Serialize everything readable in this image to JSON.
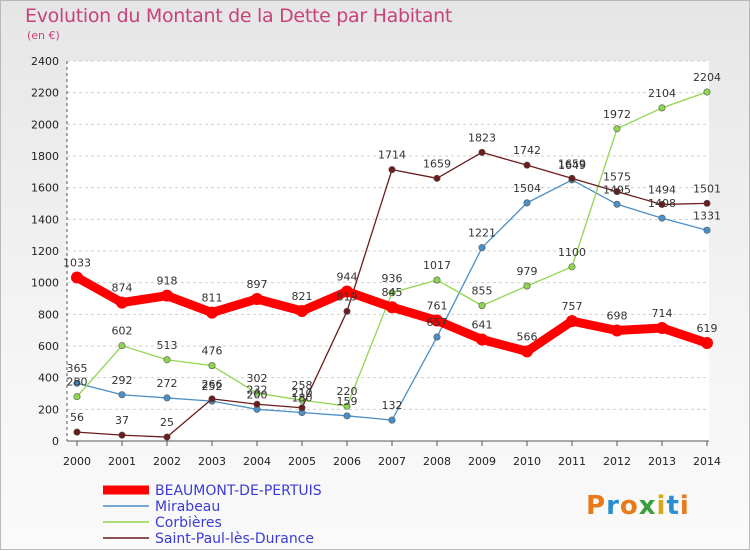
{
  "title": "Evolution du Montant de la Dette par Habitant",
  "unit": "(en €)",
  "logo": "Proxiti",
  "chart_data": {
    "type": "line",
    "title": "Evolution du Montant de la Dette par Habitant",
    "ylabel": "(en €)",
    "xlabel": "",
    "x": [
      "2000",
      "2001",
      "2002",
      "2003",
      "2004",
      "2005",
      "2006",
      "2007",
      "2008",
      "2009",
      "2010",
      "2011",
      "2012",
      "2013",
      "2014"
    ],
    "ylim": [
      0,
      2400
    ],
    "yticks": [
      "0",
      "200",
      "400",
      "600",
      "800",
      "1000",
      "1200",
      "1400",
      "1600",
      "1800",
      "2000",
      "2200",
      "2400"
    ],
    "grid": "horizontal",
    "legend": "bottom-left",
    "series": [
      {
        "name": "BEAUMONT-DE-PERTUIS",
        "color": "#ff0000",
        "values": [
          1033,
          874,
          918,
          811,
          897,
          821,
          944,
          845,
          761,
          641,
          566,
          757,
          698,
          714,
          619
        ]
      },
      {
        "name": "Mirabeau",
        "color": "#4a90c8",
        "values": [
          365,
          292,
          272,
          252,
          200,
          180,
          159,
          132,
          657,
          1221,
          1504,
          1649,
          1495,
          1408,
          1331
        ]
      },
      {
        "name": "Corbières",
        "color": "#8fd650",
        "values": [
          280,
          602,
          513,
          476,
          302,
          258,
          220,
          936,
          1017,
          855,
          979,
          1100,
          1972,
          2104,
          2204
        ]
      },
      {
        "name": "Saint-Paul-lès-Durance",
        "color": "#6b1c1c",
        "values": [
          56,
          37,
          25,
          266,
          232,
          210,
          819,
          1714,
          1659,
          1823,
          1742,
          1659,
          1575,
          1494,
          1501
        ]
      }
    ]
  }
}
